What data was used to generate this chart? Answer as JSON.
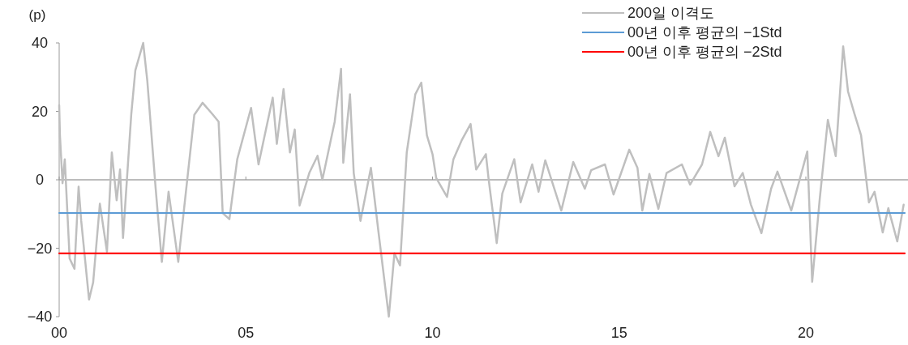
{
  "chart_data": {
    "type": "line",
    "ylabel": "(p)",
    "xlim": [
      2000,
      2022.65
    ],
    "xticks": [
      {
        "value": 2000,
        "label": "00"
      },
      {
        "value": 2005,
        "label": "05"
      },
      {
        "value": 2010,
        "label": "10"
      },
      {
        "value": 2015,
        "label": "15"
      },
      {
        "value": 2020,
        "label": "20"
      }
    ],
    "ylim": [
      -40,
      40
    ],
    "yticks": [
      -40,
      -20,
      0,
      20,
      40
    ],
    "ref_lines": [
      {
        "axis": "y",
        "value": 0,
        "color": "#a6a6a6"
      }
    ],
    "legend": "top right",
    "marker": "none",
    "line_style": "solid",
    "series": [
      {
        "name": "200일 이격도",
        "color": "#bfbfbf",
        "x": [
          2000.0,
          2000.02,
          2000.09,
          2000.15,
          2000.28,
          2000.41,
          2000.52,
          2000.59,
          2000.8,
          2000.91,
          2001.09,
          2001.28,
          2001.41,
          2001.54,
          2001.63,
          2001.71,
          2001.93,
          2002.04,
          2002.25,
          2002.36,
          2002.58,
          2002.75,
          2002.93,
          2003.19,
          2003.34,
          2003.62,
          2003.84,
          2004.12,
          2004.27,
          2004.38,
          2004.56,
          2004.77,
          2005.14,
          2005.34,
          2005.72,
          2005.83,
          2006.01,
          2006.18,
          2006.31,
          2006.44,
          2006.7,
          2006.92,
          2007.05,
          2007.38,
          2007.55,
          2007.61,
          2007.79,
          2007.89,
          2008.07,
          2008.18,
          2008.35,
          2008.55,
          2008.83,
          2008.98,
          2009.13,
          2009.31,
          2009.54,
          2009.7,
          2009.85,
          2010.0,
          2010.1,
          2010.39,
          2010.56,
          2010.78,
          2011.02,
          2011.17,
          2011.43,
          2011.5,
          2011.72,
          2011.87,
          2012.19,
          2012.36,
          2012.67,
          2012.84,
          2013.02,
          2013.45,
          2013.77,
          2014.08,
          2014.25,
          2014.62,
          2014.85,
          2015.27,
          2015.49,
          2015.62,
          2015.81,
          2016.05,
          2016.27,
          2016.68,
          2016.9,
          2017.22,
          2017.44,
          2017.66,
          2017.83,
          2018.09,
          2018.31,
          2018.53,
          2018.81,
          2019.07,
          2019.24,
          2019.61,
          2020.04,
          2020.17,
          2020.37,
          2020.59,
          2020.8,
          2021.0,
          2021.13,
          2021.3,
          2021.48,
          2021.69,
          2021.84,
          2022.06,
          2022.21,
          2022.45,
          2022.62
        ],
        "values": [
          21.8,
          13,
          -1,
          6,
          -23,
          -26,
          -2,
          -12,
          -35,
          -30,
          -7,
          -21,
          8,
          -6,
          3,
          -17,
          19,
          32,
          40,
          29,
          -2,
          -24,
          -3.5,
          -24,
          -9,
          19,
          22.5,
          19,
          17,
          -9.7,
          -11.5,
          6,
          21,
          4.5,
          24,
          10.5,
          26.5,
          8,
          14.7,
          -7.5,
          2,
          7,
          0,
          17,
          32.4,
          5,
          25,
          2,
          -12,
          -6,
          3.5,
          -15,
          -40,
          -21.5,
          -25,
          8,
          25,
          28.4,
          13,
          7.5,
          0.5,
          -5,
          6,
          11.5,
          16.3,
          3,
          7.5,
          0.5,
          -18.5,
          -4,
          6,
          -6.6,
          4.5,
          -3.5,
          5.7,
          -9,
          5.2,
          -2.6,
          2.8,
          4.5,
          -4.3,
          8.8,
          3.5,
          -9,
          1.7,
          -8.5,
          2,
          4.5,
          -1.4,
          4.5,
          14,
          6.9,
          12.3,
          -1.9,
          2,
          -7.3,
          -15.6,
          -2.6,
          2.4,
          -9,
          8.3,
          -29.8,
          -5.9,
          17.5,
          6.9,
          39,
          25.8,
          19.4,
          13,
          -6.6,
          -3.5,
          -15.4,
          -8.3,
          -18,
          -7.3
        ]
      },
      {
        "name": "00년 이후 평균의 −1Std",
        "color": "#5b9bd5",
        "x": [
          2000,
          2022.65
        ],
        "values": [
          -9.7,
          -9.7
        ]
      },
      {
        "name": "00년 이후 평균의 −2Std",
        "color": "#ff0000",
        "x": [
          2000,
          2022.65
        ],
        "values": [
          -21.5,
          -21.5
        ]
      }
    ]
  }
}
